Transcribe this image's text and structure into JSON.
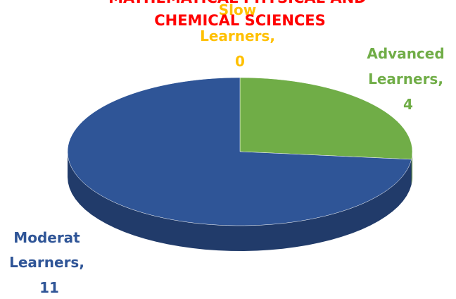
{
  "chart_data": {
    "type": "pie",
    "title": "MATHEMATICAL PHYSICAL AND CHEMICAL SCIENCES",
    "categories": [
      "Slow Learners",
      "Advanced Learners",
      "Moderat Learners"
    ],
    "values": [
      0,
      4,
      11
    ],
    "data_labels": [
      "Slow Learners, 0",
      "Advanced Learners, 4",
      "Moderat Learners, 11"
    ],
    "colors": [
      "#FFC000",
      "#70AD47",
      "#2F5597"
    ]
  }
}
